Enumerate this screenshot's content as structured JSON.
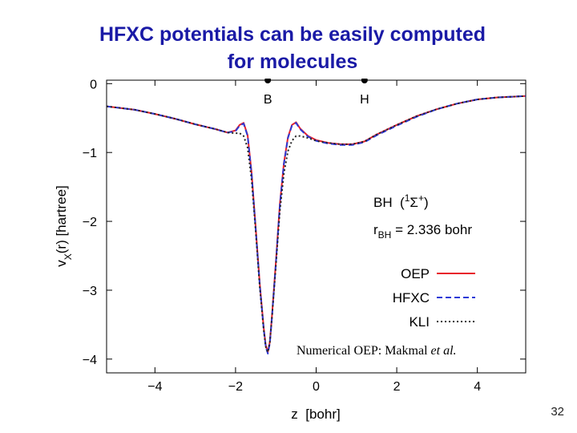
{
  "slide": {
    "title_line1": "HFXC potentials can be easily computed",
    "title_line2": "for molecules",
    "page_number": "32"
  },
  "chart_data": {
    "type": "line",
    "xlabel": "z  [bohr]",
    "ylabel": "v_X(r)  [hartree]",
    "xlim": [
      -5.2,
      5.2
    ],
    "ylim": [
      -4.2,
      0.05
    ],
    "xticks": [
      -4,
      -2,
      0,
      2,
      4
    ],
    "yticks": [
      0,
      -1,
      -2,
      -3,
      -4
    ],
    "grid": false,
    "legend_position": "right",
    "atoms": [
      {
        "label": "B",
        "x": -1.2
      },
      {
        "label": "H",
        "x": 1.2
      }
    ],
    "annotations": {
      "molecule": "BH  (",
      "state_sup": "1",
      "state_sigma": "Σ",
      "state_plus": "+",
      "state_close": ")",
      "bond_prefix": "r",
      "bond_sub": "BH",
      "bond_value": " = 2.336 bohr",
      "citation_prefix": "Numerical OEP: Makmal ",
      "citation_italic": "et al."
    },
    "series": [
      {
        "name": "OEP",
        "color": "#e8212b",
        "dash": "",
        "x": [
          -5.2,
          -4.5,
          -4.0,
          -3.5,
          -3.0,
          -2.5,
          -2.2,
          -2.0,
          -1.9,
          -1.8,
          -1.7,
          -1.6,
          -1.5,
          -1.4,
          -1.3,
          -1.25,
          -1.2,
          -1.15,
          -1.1,
          -1.0,
          -0.9,
          -0.8,
          -0.7,
          -0.6,
          -0.5,
          -0.4,
          -0.2,
          0.0,
          0.3,
          0.6,
          0.9,
          1.2,
          1.5,
          2.0,
          2.5,
          3.0,
          3.5,
          4.0,
          4.5,
          5.2
        ],
        "y": [
          -0.33,
          -0.38,
          -0.44,
          -0.51,
          -0.59,
          -0.66,
          -0.71,
          -0.68,
          -0.6,
          -0.57,
          -0.75,
          -1.3,
          -2.1,
          -2.9,
          -3.55,
          -3.8,
          -3.9,
          -3.75,
          -3.4,
          -2.6,
          -1.75,
          -1.15,
          -0.78,
          -0.6,
          -0.56,
          -0.65,
          -0.76,
          -0.82,
          -0.86,
          -0.88,
          -0.88,
          -0.84,
          -0.74,
          -0.6,
          -0.47,
          -0.37,
          -0.29,
          -0.23,
          -0.2,
          -0.18
        ]
      },
      {
        "name": "HFXC",
        "color": "#2b3ad6",
        "dash": "7,4",
        "x": [
          -5.2,
          -4.5,
          -4.0,
          -3.5,
          -3.0,
          -2.5,
          -2.2,
          -2.0,
          -1.9,
          -1.8,
          -1.7,
          -1.6,
          -1.5,
          -1.4,
          -1.3,
          -1.25,
          -1.2,
          -1.15,
          -1.1,
          -1.0,
          -0.9,
          -0.8,
          -0.7,
          -0.6,
          -0.5,
          -0.4,
          -0.2,
          0.0,
          0.3,
          0.6,
          0.9,
          1.2,
          1.5,
          2.0,
          2.5,
          3.0,
          3.5,
          4.0,
          4.5,
          5.2
        ],
        "y": [
          -0.33,
          -0.38,
          -0.44,
          -0.51,
          -0.59,
          -0.66,
          -0.71,
          -0.69,
          -0.61,
          -0.58,
          -0.76,
          -1.32,
          -2.12,
          -2.92,
          -3.57,
          -3.82,
          -3.92,
          -3.77,
          -3.42,
          -2.62,
          -1.77,
          -1.16,
          -0.79,
          -0.61,
          -0.57,
          -0.66,
          -0.77,
          -0.83,
          -0.87,
          -0.89,
          -0.89,
          -0.85,
          -0.75,
          -0.61,
          -0.48,
          -0.37,
          -0.29,
          -0.23,
          -0.2,
          -0.18
        ]
      },
      {
        "name": "KLI",
        "color": "#222222",
        "dash": "2,3",
        "x": [
          -5.2,
          -4.5,
          -4.0,
          -3.5,
          -3.0,
          -2.5,
          -2.2,
          -2.0,
          -1.9,
          -1.8,
          -1.7,
          -1.6,
          -1.5,
          -1.4,
          -1.3,
          -1.25,
          -1.2,
          -1.15,
          -1.1,
          -1.0,
          -0.9,
          -0.8,
          -0.7,
          -0.6,
          -0.5,
          -0.4,
          -0.2,
          0.0,
          0.3,
          0.6,
          0.9,
          1.2,
          1.5,
          2.0,
          2.5,
          3.0,
          3.5,
          4.0,
          4.5,
          5.2
        ],
        "y": [
          -0.33,
          -0.38,
          -0.44,
          -0.51,
          -0.59,
          -0.66,
          -0.71,
          -0.72,
          -0.72,
          -0.76,
          -0.93,
          -1.4,
          -2.15,
          -2.95,
          -3.58,
          -3.82,
          -3.9,
          -3.76,
          -3.42,
          -2.65,
          -1.85,
          -1.3,
          -0.98,
          -0.83,
          -0.76,
          -0.76,
          -0.79,
          -0.83,
          -0.86,
          -0.88,
          -0.88,
          -0.84,
          -0.74,
          -0.6,
          -0.47,
          -0.37,
          -0.29,
          -0.23,
          -0.2,
          -0.18
        ]
      }
    ]
  }
}
